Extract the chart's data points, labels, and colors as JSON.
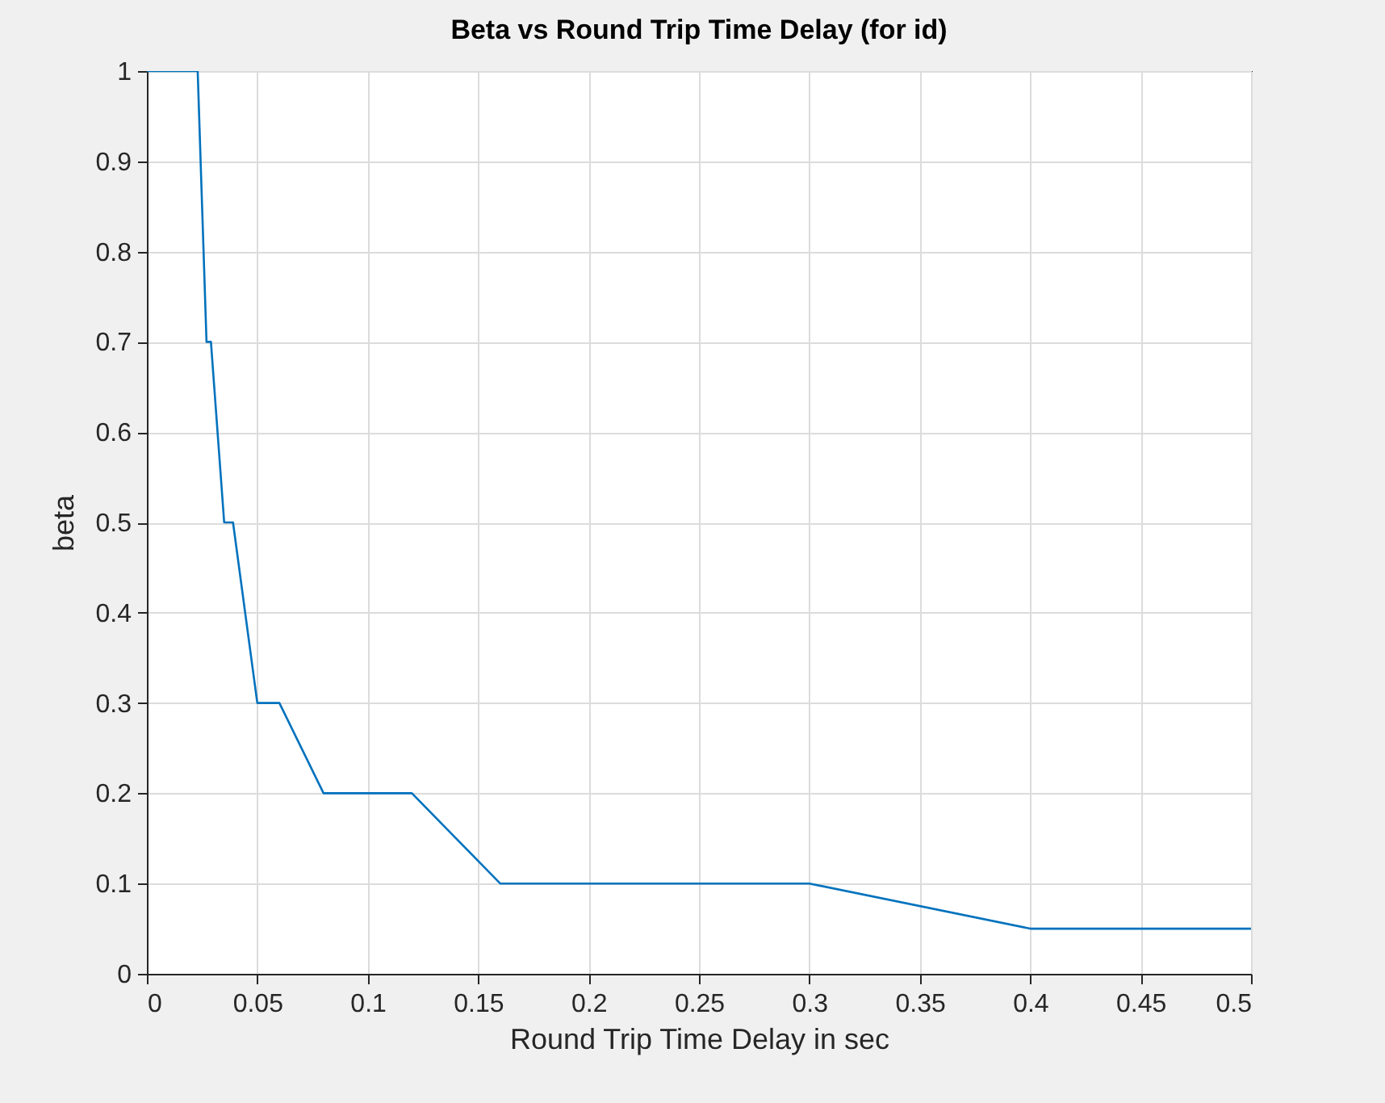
{
  "chart_data": {
    "type": "line",
    "title": "Beta vs Round Trip Time Delay (for id)",
    "xlabel": "Round Trip Time Delay in sec",
    "ylabel": "beta",
    "x": [
      0,
      0.023,
      0.027,
      0.029,
      0.035,
      0.039,
      0.05,
      0.06,
      0.08,
      0.12,
      0.16,
      0.3,
      0.4,
      0.5
    ],
    "series": [
      {
        "color": "#0072bd",
        "values": [
          1,
          1,
          0.7,
          0.7,
          0.5,
          0.5,
          0.3,
          0.3,
          0.2,
          0.2,
          0.1,
          0.1,
          0.05,
          0.05
        ]
      }
    ],
    "xlim": [
      0,
      0.5
    ],
    "xticks": [
      0,
      0.05,
      0.1,
      0.15,
      0.2,
      0.25,
      0.3,
      0.35,
      0.4,
      0.45,
      0.5
    ],
    "ylim": [
      0,
      1
    ],
    "yticks": [
      0,
      0.1,
      0.2,
      0.3,
      0.4,
      0.5,
      0.6,
      0.7,
      0.8,
      0.9,
      1
    ],
    "grid": true,
    "marker": "none",
    "line_style": "solid"
  }
}
